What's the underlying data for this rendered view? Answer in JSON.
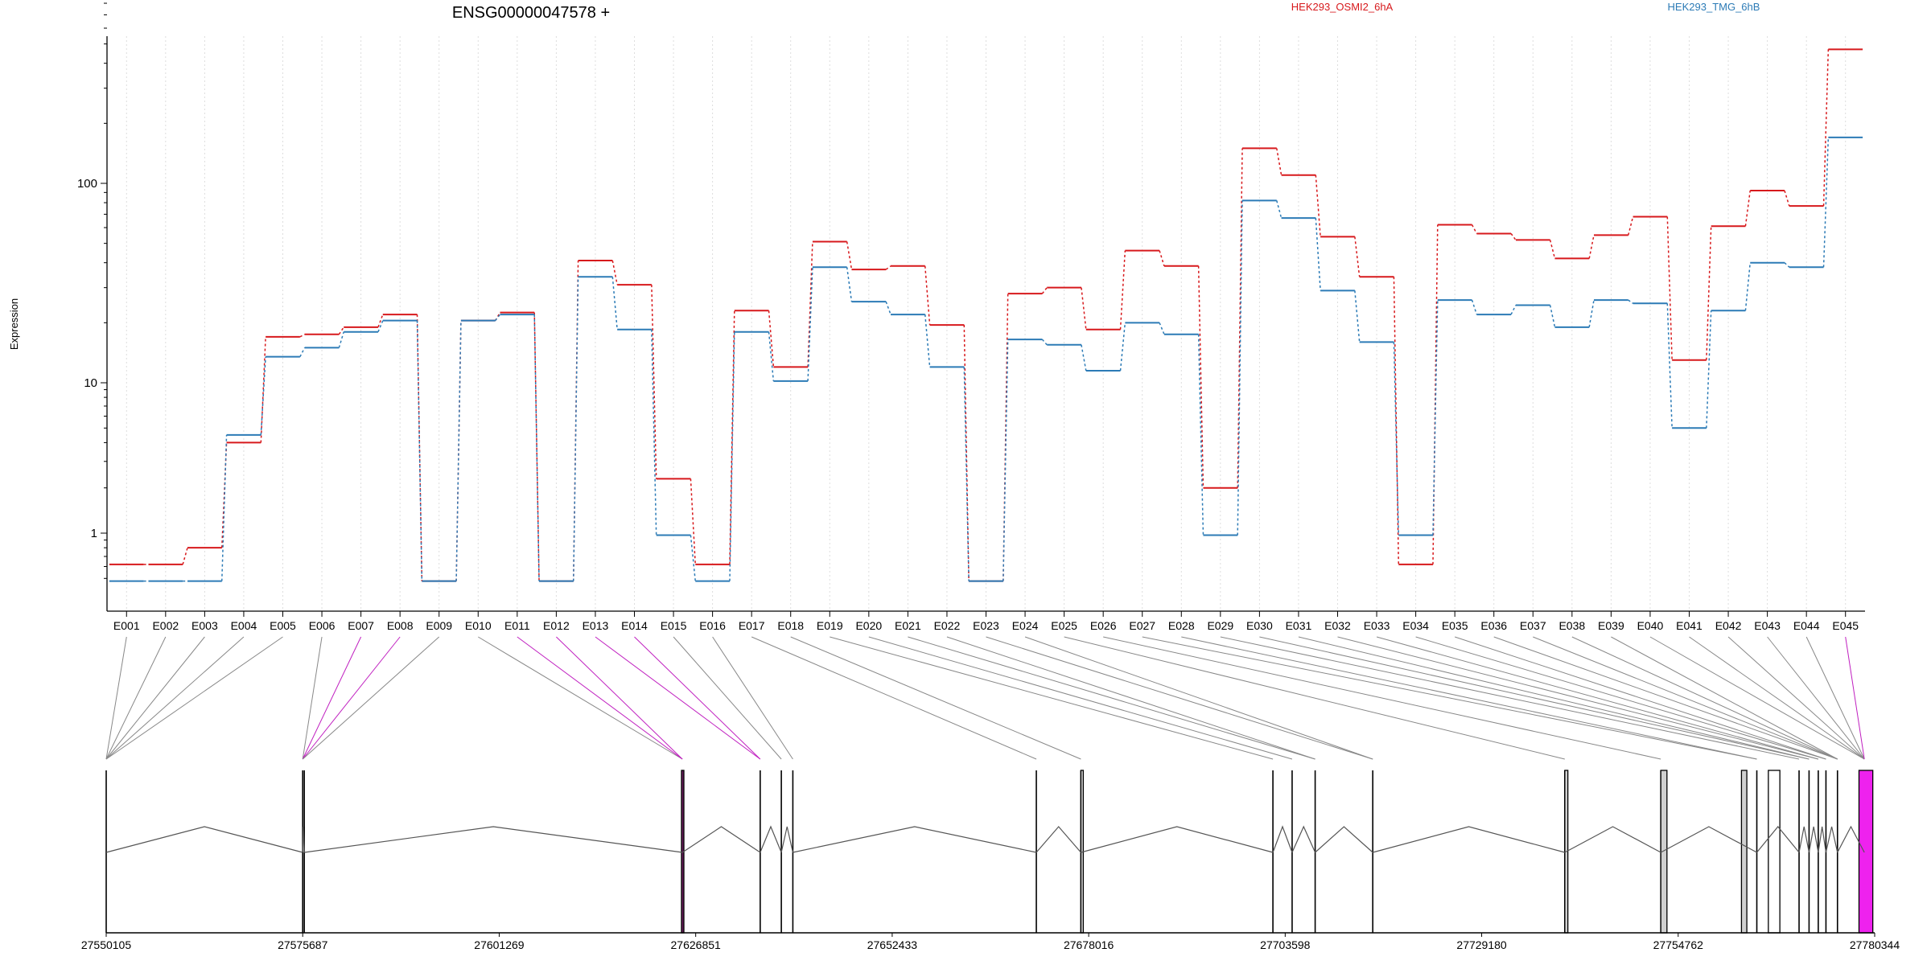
{
  "chart_data": {
    "type": "line",
    "title": "ENSG00000047578 +",
    "ylabel": "Expression",
    "y_scale": "log",
    "y_ticks": [
      1,
      10,
      100
    ],
    "categories": [
      "E001",
      "E002",
      "E003",
      "E004",
      "E005",
      "E006",
      "E007",
      "E008",
      "E009",
      "E010",
      "E011",
      "E012",
      "E013",
      "E014",
      "E015",
      "E016",
      "E017",
      "E018",
      "E019",
      "E020",
      "E021",
      "E022",
      "E023",
      "E024",
      "E025",
      "E026",
      "E027",
      "E028",
      "E029",
      "E030",
      "E031",
      "E032",
      "E033",
      "E034",
      "E035",
      "E036",
      "E037",
      "E038",
      "E039",
      "E040",
      "E041",
      "E042",
      "E043",
      "E044",
      "E045"
    ],
    "series": [
      {
        "name": "HEK293_OSMI2_6hA",
        "color": "#d7191c",
        "values": [
          0.62,
          0.62,
          0.8,
          4.0,
          17,
          17.5,
          19,
          22,
          0.48,
          20.5,
          22.5,
          0.48,
          41,
          31,
          2.3,
          0.62,
          23,
          12,
          51,
          37,
          38.5,
          19.5,
          0.48,
          28,
          30,
          18.5,
          46,
          38.5,
          2.0,
          150,
          110,
          54,
          34,
          0.62,
          62,
          56,
          52,
          42,
          55,
          68,
          13,
          61,
          92,
          77,
          470
        ]
      },
      {
        "name": "HEK293_TMG_6hB",
        "color": "#2c7bb6",
        "values": [
          0.48,
          0.48,
          0.48,
          4.5,
          13.5,
          15,
          18,
          20.5,
          0.48,
          20.5,
          22,
          0.48,
          34,
          18.5,
          0.97,
          0.48,
          18,
          10.2,
          38,
          25.5,
          22,
          12,
          0.48,
          16.5,
          15.5,
          11.5,
          20,
          17.5,
          0.97,
          82,
          67,
          29,
          16,
          0.97,
          26,
          22,
          24.5,
          19,
          26,
          25,
          5.0,
          23,
          40,
          38,
          170
        ]
      }
    ],
    "genomic_ticks": [
      "27550105",
      "27575687",
      "27601269",
      "27626851",
      "27652433",
      "27678016",
      "27703598",
      "27729180",
      "27754762",
      "27780344"
    ],
    "genomic_range": [
      27550105,
      27780344
    ],
    "exon_coords": [
      27550105,
      27575687,
      27575895,
      27625120,
      27635250,
      27638000,
      27639500,
      27671200,
      27677000,
      27702000,
      27704500,
      27707500,
      27715000,
      27740000,
      27752500,
      27765000,
      27770500,
      27771800,
      27773000,
      27774000,
      27775500,
      27779000
    ],
    "connector_targets": [
      0,
      0,
      0,
      0,
      0,
      1,
      1,
      1,
      1,
      3,
      3,
      3,
      4,
      4,
      5,
      6,
      7,
      8,
      9,
      10,
      11,
      11,
      12,
      12,
      13,
      14,
      15,
      15,
      16,
      17,
      17,
      18,
      18,
      19,
      19,
      20,
      20,
      20,
      20,
      21,
      21,
      21,
      21,
      21,
      21
    ],
    "magenta_connectors": [
      6,
      7,
      10,
      11,
      12,
      13,
      44
    ],
    "feature_boxes": [
      {
        "from": 27625000,
        "to": 27625300,
        "fill": "#6b1d5e"
      },
      {
        "from": 27677000,
        "to": 27677300,
        "fill": "#d0d0d0"
      },
      {
        "from": 27740000,
        "to": 27740400,
        "fill": "#d0d0d0"
      },
      {
        "from": 27752500,
        "to": 27753300,
        "fill": "#d0d0d0"
      },
      {
        "from": 27763000,
        "to": 27763700,
        "fill": "#d0d0d0"
      },
      {
        "from": 27766500,
        "to": 27768000,
        "fill": "#ffffff"
      },
      {
        "from": 27778300,
        "to": 27780100,
        "fill": "#ee22ee"
      }
    ]
  }
}
